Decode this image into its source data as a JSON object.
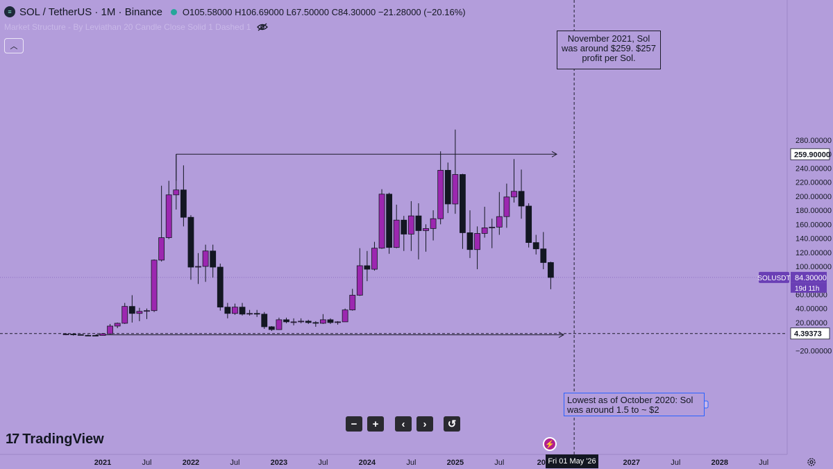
{
  "header": {
    "logo_icon": "solana-logo-icon",
    "title": "SOL / TetherUS · 1M · Binance",
    "ohlc": "O105.58000 H106.69000 L67.50000 C84.30000 −21.28000 (−20.16%)",
    "status_color": "#26a69a"
  },
  "indicator": {
    "label": "Market Structure - By Leviathan 20 Candle Close Solid 1 Dashed 1",
    "icon": "eye-off-icon"
  },
  "annotations": {
    "nov2021": [
      "November 2021, Sol",
      "was around $259. $257",
      "profit per Sol."
    ],
    "oct2020": [
      "Lowest as of October 2020: Sol",
      "was around 1.5 to ~ $2"
    ]
  },
  "brand": {
    "name": "TradingView",
    "logo_text": "17"
  },
  "nav": [
    {
      "icon": "minus-icon",
      "glyph": "−"
    },
    {
      "icon": "plus-icon",
      "glyph": "+"
    },
    {
      "icon": "chevron-left-icon",
      "glyph": "‹"
    },
    {
      "icon": "chevron-right-icon",
      "glyph": "›"
    },
    {
      "icon": "reset-icon",
      "glyph": "↺"
    }
  ],
  "crosshair_date": "Fri 01 May '26",
  "colors": {
    "background": "#b39ddb",
    "bull": "#9c27b0",
    "bear": "#131722",
    "label_bg": "#6a3fb5"
  },
  "chart_data": {
    "type": "candlestick",
    "timeframe": "1M",
    "y_ticks": [
      "280.00000",
      "260.00000",
      "240.00000",
      "220.00000",
      "200.00000",
      "180.00000",
      "160.00000",
      "140.00000",
      "120.00000",
      "100.00000",
      "60.00000",
      "40.00000",
      "20.00000",
      "−20.00000"
    ],
    "y_tick_values": [
      280,
      260,
      240,
      220,
      200,
      180,
      160,
      140,
      120,
      100,
      60,
      40,
      20,
      -20
    ],
    "x_ticks": [
      "2021",
      "Jul",
      "2022",
      "Jul",
      "2023",
      "Jul",
      "2024",
      "Jul",
      "2025",
      "Jul",
      "202",
      "2027",
      "Jul",
      "2028",
      "Jul"
    ],
    "x_tick_months": [
      "2021-01",
      "2021-07",
      "2022-01",
      "2022-07",
      "2023-01",
      "2023-07",
      "2024-01",
      "2024-07",
      "2025-01",
      "2025-07",
      "2026-01",
      "2027-01",
      "2027-07",
      "2028-01",
      "2028-07"
    ],
    "price_labels": [
      {
        "text": "259.90000",
        "value": 259.9,
        "style": "white"
      },
      {
        "text": "SOLUSDT",
        "value": 84.3,
        "style": "current"
      },
      {
        "text": "84.30000",
        "value": 84.3,
        "style": "current"
      },
      {
        "text": "19d 11h",
        "value": 84.3,
        "style": "current-sub"
      },
      {
        "text": "4.39373",
        "value": 4.39373,
        "style": "white"
      }
    ],
    "levels": [
      {
        "value": 259.9,
        "from": "2021-10",
        "to": "2026-03",
        "style": "solid-arrow"
      },
      {
        "value": 4.39373,
        "from": "2020-09",
        "to": "2028-12",
        "style": "dashed"
      },
      {
        "value": 2.5,
        "from": "2020-12",
        "to": "2026-03",
        "style": "solid-arrow"
      }
    ],
    "crosshair_x": "2026-05",
    "candles": [
      {
        "t": "2020-08",
        "o": 2.8,
        "h": 4.9,
        "l": 2.0,
        "c": 3.5
      },
      {
        "t": "2020-09",
        "o": 3.5,
        "h": 4.5,
        "l": 1.5,
        "c": 2.9
      },
      {
        "t": "2020-10",
        "o": 2.9,
        "h": 3.3,
        "l": 1.9,
        "c": 1.8
      },
      {
        "t": "2020-11",
        "o": 1.8,
        "h": 3.2,
        "l": 1.0,
        "c": 1.7
      },
      {
        "t": "2020-12",
        "o": 1.7,
        "h": 2.4,
        "l": 1.4,
        "c": 1.6
      },
      {
        "t": "2021-01",
        "o": 1.6,
        "h": 4.8,
        "l": 1.5,
        "c": 4.0
      },
      {
        "t": "2021-02",
        "o": 4.0,
        "h": 18.0,
        "l": 3.3,
        "c": 15.0
      },
      {
        "t": "2021-03",
        "o": 15.0,
        "h": 20.0,
        "l": 12.0,
        "c": 19.0
      },
      {
        "t": "2021-04",
        "o": 19.0,
        "h": 48.0,
        "l": 18.0,
        "c": 43.0
      },
      {
        "t": "2021-05",
        "o": 43.0,
        "h": 59.0,
        "l": 20.0,
        "c": 33.0
      },
      {
        "t": "2021-06",
        "o": 33.0,
        "h": 41.0,
        "l": 22.0,
        "c": 36.0
      },
      {
        "t": "2021-07",
        "o": 36.0,
        "h": 40.0,
        "l": 25.0,
        "c": 37.0
      },
      {
        "t": "2021-08",
        "o": 37.0,
        "h": 110.0,
        "l": 35.0,
        "c": 109.0
      },
      {
        "t": "2021-09",
        "o": 109.0,
        "h": 215.0,
        "l": 107.0,
        "c": 141.0
      },
      {
        "t": "2021-10",
        "o": 141.0,
        "h": 222.0,
        "l": 139.0,
        "c": 202.0
      },
      {
        "t": "2021-11",
        "o": 202.0,
        "h": 259.9,
        "l": 181.0,
        "c": 209.0
      },
      {
        "t": "2021-12",
        "o": 209.0,
        "h": 244.0,
        "l": 157.0,
        "c": 170.0
      },
      {
        "t": "2022-01",
        "o": 170.0,
        "h": 173.0,
        "l": 81.0,
        "c": 99.0
      },
      {
        "t": "2022-02",
        "o": 99.0,
        "h": 119.0,
        "l": 75.0,
        "c": 100.0
      },
      {
        "t": "2022-03",
        "o": 100.0,
        "h": 131.0,
        "l": 78.0,
        "c": 122.0
      },
      {
        "t": "2022-04",
        "o": 122.0,
        "h": 131.0,
        "l": 84.0,
        "c": 99.0
      },
      {
        "t": "2022-05",
        "o": 99.0,
        "h": 104.0,
        "l": 37.0,
        "c": 42.0
      },
      {
        "t": "2022-06",
        "o": 42.0,
        "h": 48.0,
        "l": 26.0,
        "c": 33.0
      },
      {
        "t": "2022-07",
        "o": 33.0,
        "h": 47.0,
        "l": 31.0,
        "c": 42.0
      },
      {
        "t": "2022-08",
        "o": 42.0,
        "h": 48.0,
        "l": 30.0,
        "c": 32.0
      },
      {
        "t": "2022-09",
        "o": 32.0,
        "h": 38.0,
        "l": 30.0,
        "c": 33.0
      },
      {
        "t": "2022-10",
        "o": 33.0,
        "h": 38.0,
        "l": 28.0,
        "c": 32.0
      },
      {
        "t": "2022-11",
        "o": 32.0,
        "h": 35.0,
        "l": 11.0,
        "c": 14.0
      },
      {
        "t": "2022-12",
        "o": 14.0,
        "h": 15.0,
        "l": 8.0,
        "c": 10.0
      },
      {
        "t": "2023-01",
        "o": 10.0,
        "h": 27.0,
        "l": 9.5,
        "c": 24.0
      },
      {
        "t": "2023-02",
        "o": 24.0,
        "h": 27.0,
        "l": 19.0,
        "c": 21.0
      },
      {
        "t": "2023-03",
        "o": 21.0,
        "h": 26.0,
        "l": 16.0,
        "c": 21.0
      },
      {
        "t": "2023-04",
        "o": 21.0,
        "h": 26.0,
        "l": 19.0,
        "c": 22.0
      },
      {
        "t": "2023-05",
        "o": 22.0,
        "h": 24.0,
        "l": 18.0,
        "c": 20.0
      },
      {
        "t": "2023-06",
        "o": 20.0,
        "h": 22.0,
        "l": 14.0,
        "c": 19.0
      },
      {
        "t": "2023-07",
        "o": 19.0,
        "h": 32.0,
        "l": 18.0,
        "c": 24.0
      },
      {
        "t": "2023-08",
        "o": 24.0,
        "h": 26.0,
        "l": 18.0,
        "c": 20.0
      },
      {
        "t": "2023-09",
        "o": 20.0,
        "h": 22.0,
        "l": 17.0,
        "c": 21.0
      },
      {
        "t": "2023-10",
        "o": 21.0,
        "h": 40.0,
        "l": 21.0,
        "c": 38.0
      },
      {
        "t": "2023-11",
        "o": 38.0,
        "h": 68.0,
        "l": 37.0,
        "c": 59.0
      },
      {
        "t": "2023-12",
        "o": 59.0,
        "h": 126.0,
        "l": 58.0,
        "c": 101.0
      },
      {
        "t": "2024-01",
        "o": 101.0,
        "h": 122.0,
        "l": 79.0,
        "c": 96.0
      },
      {
        "t": "2024-02",
        "o": 96.0,
        "h": 135.0,
        "l": 94.0,
        "c": 126.0
      },
      {
        "t": "2024-03",
        "o": 126.0,
        "h": 210.0,
        "l": 125.0,
        "c": 203.0
      },
      {
        "t": "2024-04",
        "o": 203.0,
        "h": 205.0,
        "l": 118.0,
        "c": 127.0
      },
      {
        "t": "2024-05",
        "o": 127.0,
        "h": 188.0,
        "l": 126.0,
        "c": 166.0
      },
      {
        "t": "2024-06",
        "o": 166.0,
        "h": 172.0,
        "l": 122.0,
        "c": 146.0
      },
      {
        "t": "2024-07",
        "o": 146.0,
        "h": 193.0,
        "l": 122.0,
        "c": 172.0
      },
      {
        "t": "2024-08",
        "o": 172.0,
        "h": 190.0,
        "l": 110.0,
        "c": 151.0
      },
      {
        "t": "2024-09",
        "o": 151.0,
        "h": 160.0,
        "l": 121.0,
        "c": 154.0
      },
      {
        "t": "2024-10",
        "o": 154.0,
        "h": 180.0,
        "l": 137.0,
        "c": 168.0
      },
      {
        "t": "2024-11",
        "o": 168.0,
        "h": 264.0,
        "l": 160.0,
        "c": 237.0
      },
      {
        "t": "2024-12",
        "o": 237.0,
        "h": 248.0,
        "l": 176.0,
        "c": 189.0
      },
      {
        "t": "2025-01",
        "o": 189.0,
        "h": 295.0,
        "l": 175.0,
        "c": 231.0
      },
      {
        "t": "2025-02",
        "o": 231.0,
        "h": 232.0,
        "l": 125.0,
        "c": 148.0
      },
      {
        "t": "2025-03",
        "o": 148.0,
        "h": 180.0,
        "l": 112.0,
        "c": 124.0
      },
      {
        "t": "2025-04",
        "o": 124.0,
        "h": 157.0,
        "l": 96.0,
        "c": 147.0
      },
      {
        "t": "2025-05",
        "o": 147.0,
        "h": 185.0,
        "l": 141.0,
        "c": 155.0
      },
      {
        "t": "2025-06",
        "o": 155.0,
        "h": 168.0,
        "l": 126.0,
        "c": 156.0
      },
      {
        "t": "2025-07",
        "o": 156.0,
        "h": 206.0,
        "l": 145.0,
        "c": 171.0
      },
      {
        "t": "2025-08",
        "o": 171.0,
        "h": 218.0,
        "l": 155.0,
        "c": 199.0
      },
      {
        "t": "2025-09",
        "o": 199.0,
        "h": 253.0,
        "l": 191.0,
        "c": 207.0
      },
      {
        "t": "2025-10",
        "o": 207.0,
        "h": 238.0,
        "l": 168.0,
        "c": 186.0
      },
      {
        "t": "2025-11",
        "o": 186.0,
        "h": 190.0,
        "l": 127.0,
        "c": 134.0
      },
      {
        "t": "2025-12",
        "o": 134.0,
        "h": 145.0,
        "l": 117.0,
        "c": 125.0
      },
      {
        "t": "2026-01",
        "o": 125.0,
        "h": 149.0,
        "l": 96.0,
        "c": 105.5
      },
      {
        "t": "2026-02",
        "o": 105.58,
        "h": 106.69,
        "l": 67.5,
        "c": 84.3
      }
    ]
  }
}
